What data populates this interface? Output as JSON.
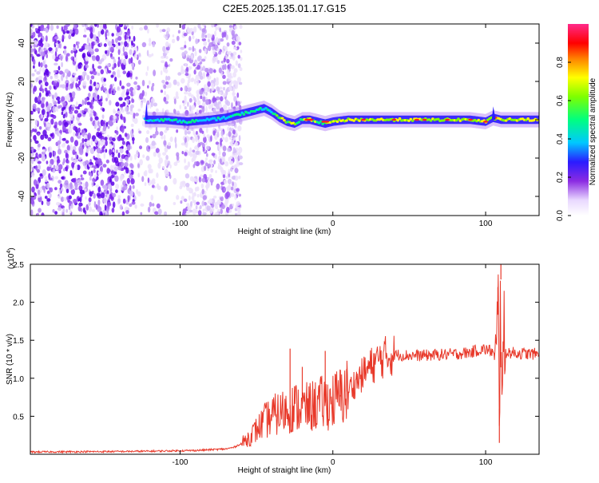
{
  "chart_data": [
    {
      "type": "heatmap",
      "title": "C2E5.2025.135.01.17.G15",
      "xlabel": "Height of straight line (km)",
      "ylabel": "Frequency (Hz)",
      "xlim": [
        -198,
        135
      ],
      "ylim": [
        -50,
        50
      ],
      "xticks": [
        -100,
        0,
        100
      ],
      "xtick_labels": [
        "-100",
        "0",
        "100"
      ],
      "yticks": [
        -40,
        -20,
        0,
        20,
        40
      ],
      "ytick_labels": [
        "-40",
        "-20",
        "0",
        "20",
        "40"
      ],
      "colorbar": {
        "label": "Normalized spectral amplitude",
        "range": [
          0,
          1
        ],
        "ticks": [
          0.0,
          0.2,
          0.4,
          0.6,
          0.8
        ],
        "tick_labels": [
          "0.0",
          "0.2",
          "0.4",
          "0.6",
          "0.8"
        ],
        "colormap": "white-violet-blue-cyan-green-yellow-red-magenta"
      },
      "ridge": {
        "description_points_x": [
          -123,
          -110,
          -95,
          -80,
          -70,
          -60,
          -50,
          -45,
          -40,
          -35,
          -30,
          -25,
          -20,
          -15,
          -10,
          -5,
          0,
          10,
          30,
          60,
          90,
          100,
          105,
          110,
          135
        ],
        "center_freq_hz": [
          0,
          0,
          -1,
          0,
          1,
          3,
          5,
          6,
          4,
          1,
          -1,
          -2,
          0,
          0,
          -1,
          -2,
          -1,
          0,
          0,
          0,
          0,
          -1,
          1,
          0,
          0
        ]
      }
    },
    {
      "type": "line",
      "xlabel": "Height of straight line (km)",
      "ylabel": "SNR (10 * v/v)",
      "y_multiplier_label": "(x10",
      "y_multiplier_exp": "4",
      "y_multiplier_close": ")",
      "xlim": [
        -198,
        135
      ],
      "ylim": [
        0,
        25000
      ],
      "xticks": [
        -100,
        0,
        100
      ],
      "xtick_labels": [
        "-100",
        "0",
        "100"
      ],
      "yticks": [
        5000,
        10000,
        15000,
        20000,
        25000
      ],
      "ytick_labels": [
        "0.5",
        "1.0",
        "1.5",
        "2.0",
        "2.5"
      ],
      "color": "#e8392a",
      "series": [
        {
          "x": [
            -198,
            -150,
            -120,
            -90,
            -80,
            -70,
            -65,
            -60,
            -55,
            -50,
            -45,
            -40,
            -35,
            -30,
            -25,
            -20,
            -15,
            -10,
            -5,
            0,
            5,
            10,
            15,
            20,
            25,
            30,
            35,
            40,
            50,
            60,
            70,
            80,
            90,
            95,
            100,
            105,
            107,
            108,
            109,
            110,
            111,
            112,
            115,
            120,
            130,
            135
          ],
          "y": [
            300,
            350,
            400,
            500,
            600,
            700,
            900,
            1400,
            2200,
            3200,
            4300,
            5000,
            5400,
            5800,
            6200,
            6000,
            6200,
            6600,
            6800,
            7000,
            7600,
            8400,
            9500,
            10600,
            11600,
            12400,
            12900,
            13100,
            13000,
            13000,
            13100,
            13200,
            13400,
            13700,
            13800,
            13500,
            10500,
            20000,
            6000,
            23000,
            9000,
            13500,
            13400,
            13300,
            13200,
            13200
          ],
          "spikes": [
            {
              "x": -28,
              "y": 13900
            },
            {
              "x": -20,
              "y": 11500
            },
            {
              "x": -5,
              "y": 13600
            },
            {
              "x": 5,
              "y": 7800
            },
            {
              "x": 9,
              "y": 11200
            },
            {
              "x": 108,
              "y": 22000
            },
            {
              "x": 109,
              "y": 1500
            },
            {
              "x": 110,
              "y": 25000
            }
          ]
        }
      ]
    }
  ]
}
